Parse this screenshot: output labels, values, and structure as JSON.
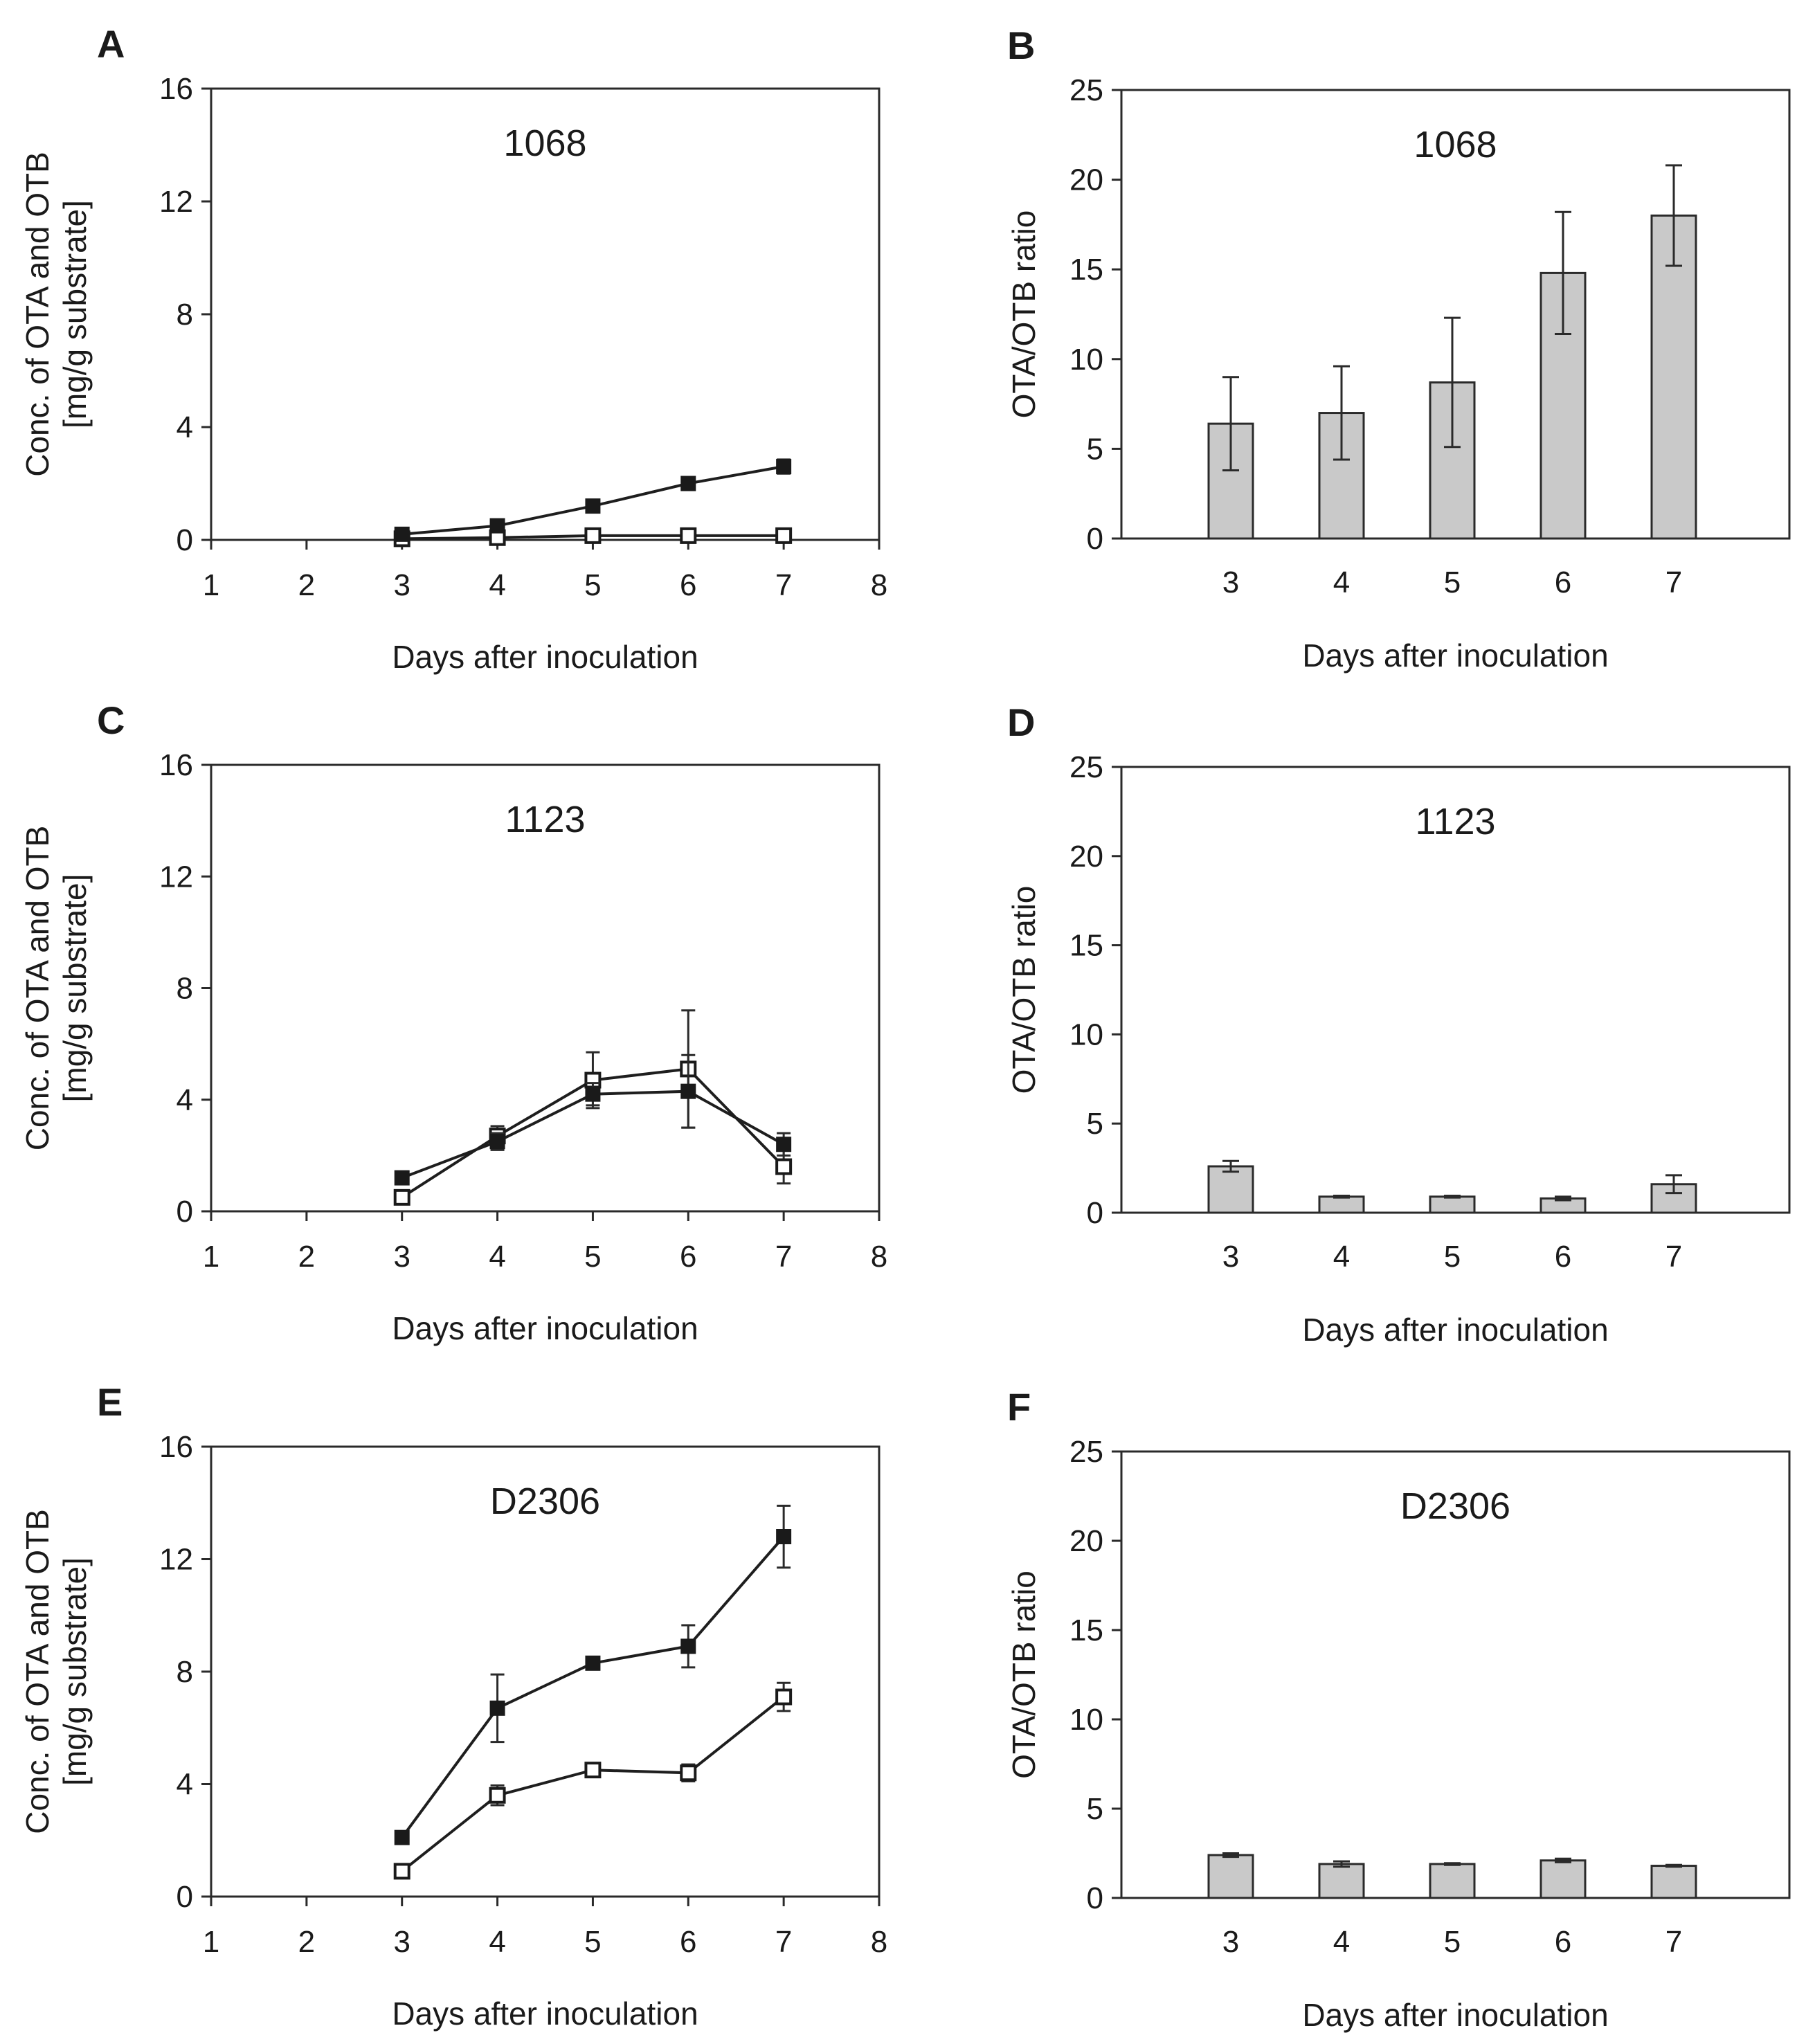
{
  "chart_data": [
    {
      "panel": "A",
      "type": "line",
      "strain": "1068",
      "xlabel": "Days after inoculation",
      "ylabel": [
        "Conc. of OTA and OTB",
        "[mg/g substrate]"
      ],
      "xlim": [
        1,
        8
      ],
      "ylim": [
        0,
        16
      ],
      "xticks": [
        1,
        2,
        3,
        4,
        5,
        6,
        7,
        8
      ],
      "yticks": [
        0,
        4,
        8,
        12,
        16
      ],
      "x": [
        3,
        4,
        5,
        6,
        7
      ],
      "series": [
        {
          "name": "OTA",
          "marker": "filled-square",
          "values": [
            0.2,
            0.5,
            1.2,
            2.0,
            2.6
          ],
          "errors": [
            0.1,
            0.1,
            0.15,
            0.1,
            0.25
          ]
        },
        {
          "name": "OTB",
          "marker": "open-square",
          "values": [
            0.04,
            0.08,
            0.15,
            0.15,
            0.15
          ],
          "errors": [
            0.02,
            0.02,
            0.05,
            0.05,
            0.05
          ]
        }
      ]
    },
    {
      "panel": "B",
      "type": "bar",
      "strain": "1068",
      "xlabel": "Days after inoculation",
      "ylabel": "OTA/OTB ratio",
      "ylim": [
        0,
        25
      ],
      "yticks": [
        0,
        5,
        10,
        15,
        20,
        25
      ],
      "categories": [
        "3",
        "4",
        "5",
        "6",
        "7"
      ],
      "values": [
        6.4,
        7.0,
        8.7,
        14.8,
        18.0
      ],
      "errors": [
        2.6,
        2.6,
        3.6,
        3.4,
        2.8
      ]
    },
    {
      "panel": "C",
      "type": "line",
      "strain": "1123",
      "xlabel": "Days after inoculation",
      "ylabel": [
        "Conc. of OTA and OTB",
        "[mg/g substrate]"
      ],
      "xlim": [
        1,
        8
      ],
      "ylim": [
        0,
        16
      ],
      "xticks": [
        1,
        2,
        3,
        4,
        5,
        6,
        7,
        8
      ],
      "yticks": [
        0,
        4,
        8,
        12,
        16
      ],
      "x": [
        3,
        4,
        5,
        6,
        7
      ],
      "series": [
        {
          "name": "OTA",
          "marker": "filled-square",
          "values": [
            1.2,
            2.5,
            4.2,
            4.3,
            2.4
          ],
          "errors": [
            0.15,
            0.3,
            0.4,
            1.3,
            0.4
          ]
        },
        {
          "name": "OTB",
          "marker": "open-square",
          "values": [
            0.5,
            2.7,
            4.7,
            5.1,
            1.6
          ],
          "errors": [
            0.1,
            0.35,
            1.0,
            2.1,
            0.6
          ]
        }
      ]
    },
    {
      "panel": "D",
      "type": "bar",
      "strain": "1123",
      "xlabel": "Days after inoculation",
      "ylabel": "OTA/OTB ratio",
      "ylim": [
        0,
        25
      ],
      "yticks": [
        0,
        5,
        10,
        15,
        20,
        25
      ],
      "categories": [
        "3",
        "4",
        "5",
        "6",
        "7"
      ],
      "values": [
        2.6,
        0.9,
        0.9,
        0.8,
        1.6
      ],
      "errors": [
        0.3,
        0.05,
        0.05,
        0.1,
        0.5
      ]
    },
    {
      "panel": "E",
      "type": "line",
      "strain": "D2306",
      "xlabel": "Days after inoculation",
      "ylabel": [
        "Conc. of OTA and OTB",
        "[mg/g substrate]"
      ],
      "xlim": [
        1,
        8
      ],
      "ylim": [
        0,
        16
      ],
      "xticks": [
        1,
        2,
        3,
        4,
        5,
        6,
        7,
        8
      ],
      "yticks": [
        0,
        4,
        8,
        12,
        16
      ],
      "x": [
        3,
        4,
        5,
        6,
        7
      ],
      "series": [
        {
          "name": "OTA",
          "marker": "filled-square",
          "values": [
            2.1,
            6.7,
            8.3,
            8.9,
            12.8
          ],
          "errors": [
            0.15,
            1.2,
            0.15,
            0.75,
            1.1
          ]
        },
        {
          "name": "OTB",
          "marker": "open-square",
          "values": [
            0.9,
            3.6,
            4.5,
            4.4,
            7.1
          ],
          "errors": [
            0.1,
            0.35,
            0.15,
            0.3,
            0.5
          ]
        }
      ]
    },
    {
      "panel": "F",
      "type": "bar",
      "strain": "D2306",
      "xlabel": "Days after inoculation",
      "ylabel": "OTA/OTB ratio",
      "ylim": [
        0,
        25
      ],
      "yticks": [
        0,
        5,
        10,
        15,
        20,
        25
      ],
      "categories": [
        "3",
        "4",
        "5",
        "6",
        "7"
      ],
      "values": [
        2.4,
        1.9,
        1.9,
        2.1,
        1.8
      ],
      "errors": [
        0.1,
        0.15,
        0.05,
        0.1,
        0.05
      ]
    }
  ]
}
